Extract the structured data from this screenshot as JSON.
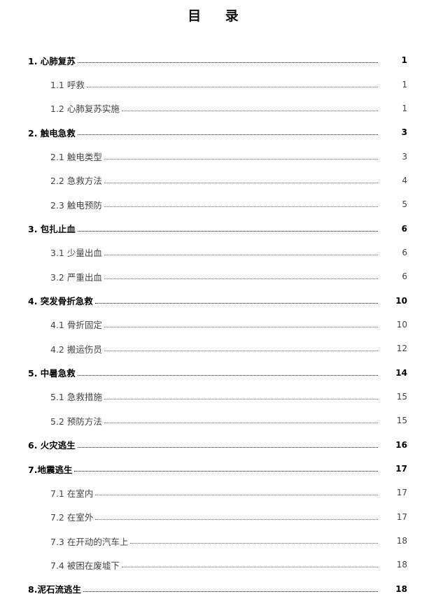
{
  "title": "目 录",
  "entries": [
    {
      "level": 1,
      "label": "1. 心肺复苏",
      "page": "1"
    },
    {
      "level": 2,
      "label": "1.1 呼救",
      "page": "1"
    },
    {
      "level": 2,
      "label": "1.2 心肺复苏实施",
      "page": "1"
    },
    {
      "level": 1,
      "label": "2. 触电急救",
      "page": "3"
    },
    {
      "level": 2,
      "label": "2.1 触电类型",
      "page": "3"
    },
    {
      "level": 2,
      "label": "2.2 急救方法",
      "page": "4"
    },
    {
      "level": 2,
      "label": "2.3 触电预防",
      "page": "5"
    },
    {
      "level": 1,
      "label": "3. 包扎止血",
      "page": "6"
    },
    {
      "level": 2,
      "label": "3.1 少量出血",
      "page": "6"
    },
    {
      "level": 2,
      "label": "3.2 严重出血",
      "page": "6"
    },
    {
      "level": 1,
      "label": "4. 突发骨折急救",
      "page": "10"
    },
    {
      "level": 2,
      "label": "4.1 骨折固定",
      "page": "10"
    },
    {
      "level": 2,
      "label": "4.2 搬运伤员",
      "page": "12"
    },
    {
      "level": 1,
      "label": "5. 中暑急救",
      "page": "14"
    },
    {
      "level": 2,
      "label": "5.1 急救措施",
      "page": "15"
    },
    {
      "level": 2,
      "label": "5.2 预防方法",
      "page": "15"
    },
    {
      "level": 1,
      "label": "6. 火灾逃生",
      "page": "16"
    },
    {
      "level": 1,
      "label": "7.地震逃生",
      "page": "17"
    },
    {
      "level": 2,
      "label": "7.1 在室内",
      "page": "17"
    },
    {
      "level": 2,
      "label": "7.2 在室外",
      "page": "17"
    },
    {
      "level": 2,
      "label": "7.3 在开动的汽车上",
      "page": "18"
    },
    {
      "level": 2,
      "label": "7.4 被困在废墟下",
      "page": "18"
    },
    {
      "level": 1,
      "label": "8.泥石流逃生",
      "page": "18"
    }
  ]
}
